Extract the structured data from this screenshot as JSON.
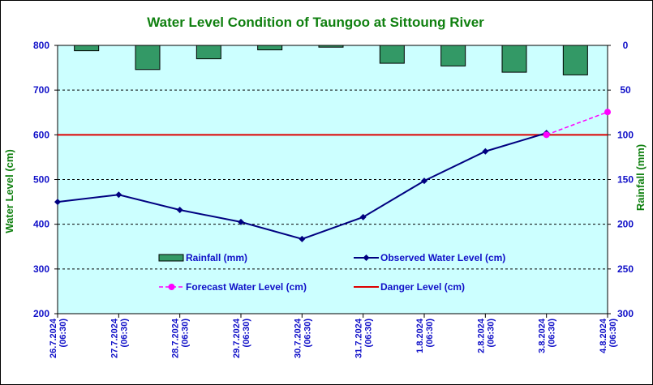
{
  "chart_data": {
    "type": "bar+line",
    "title": "Water Level Condition of Taungoo at  Sittoung River",
    "ylabel_left": "Water Level (cm)",
    "ylabel_right": "Rainfall (mm)",
    "ylim_left": [
      200,
      800
    ],
    "yticks_left": [
      "200",
      "300",
      "400",
      "500",
      "600",
      "700",
      "800"
    ],
    "ylim_right_inverted": [
      0,
      300
    ],
    "yticks_right": [
      "0",
      "50",
      "100",
      "150",
      "200",
      "250",
      "300"
    ],
    "categories": [
      [
        "26.7.2024",
        "(06:30)"
      ],
      [
        "27.7.2024",
        "(06:30)"
      ],
      [
        "28.7.2024",
        "(06:30)"
      ],
      [
        "29.7.2024",
        "(06:30)"
      ],
      [
        "30.7.2024",
        "(06:30)"
      ],
      [
        "31.7.2024",
        "(06:30)"
      ],
      [
        "1.8.2024",
        "(06:30)"
      ],
      [
        "2.8.2024",
        "(06:30)"
      ],
      [
        "3.8.2024",
        "(06:30)"
      ],
      [
        "4.8.2024",
        "(06:30)"
      ]
    ],
    "grid": true,
    "series": [
      {
        "name": "Rainfall (mm)",
        "type": "bar",
        "axis": "right",
        "values": [
          6,
          27,
          15,
          5,
          2,
          20,
          23,
          30,
          33,
          null
        ]
      },
      {
        "name": "Observed Water Level (cm)",
        "type": "line",
        "axis": "left",
        "values": [
          450,
          466,
          432,
          405,
          367,
          416,
          497,
          563,
          604,
          null
        ]
      },
      {
        "name": "Forecast Water Level (cm)",
        "type": "line-dashed",
        "axis": "left",
        "values": [
          null,
          null,
          null,
          null,
          null,
          null,
          null,
          null,
          600,
          651
        ]
      },
      {
        "name": "Danger Level (cm)",
        "type": "hline",
        "axis": "left",
        "value": 600
      }
    ],
    "colors": {
      "plot_bg": "#ccffff",
      "rainfall": "#339966",
      "observed": "#000080",
      "forecast": "#ff00ff",
      "danger": "#dd0000",
      "title": "#108010",
      "tick": "#1010c8"
    },
    "legend_placement": "inside-bottom"
  }
}
